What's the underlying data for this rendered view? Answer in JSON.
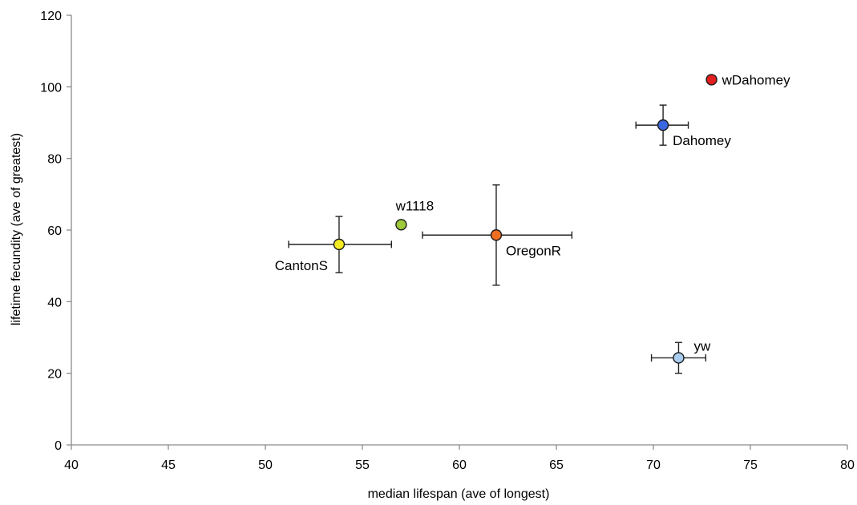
{
  "chart_data": {
    "type": "scatter",
    "title": "",
    "xlabel": "median lifespan (ave of longest)",
    "ylabel": "lifetime fecundity (ave of greatest)",
    "xlim": [
      40,
      80
    ],
    "ylim": [
      0,
      120
    ],
    "xticks": [
      40,
      45,
      50,
      55,
      60,
      65,
      70,
      75,
      80
    ],
    "yticks": [
      0,
      20,
      40,
      60,
      80,
      100,
      120
    ],
    "grid": false,
    "points": [
      {
        "label": "wDahomey",
        "x": 73.0,
        "y": 102.0,
        "x_err": null,
        "y_err": null,
        "color": "#e31e1e",
        "label_anchor": "right"
      },
      {
        "label": "Dahomey",
        "x": 70.5,
        "y": 89.3,
        "x_err": [
          69.1,
          71.8
        ],
        "y_err": [
          83.7,
          94.9
        ],
        "color": "#3b67e0",
        "label_anchor": "below-right"
      },
      {
        "label": "w1118",
        "x": 57.0,
        "y": 61.5,
        "x_err": null,
        "y_err": null,
        "color": "#9ec93a",
        "label_anchor": "above"
      },
      {
        "label": "OregonR",
        "x": 61.9,
        "y": 58.6,
        "x_err": [
          58.1,
          65.8
        ],
        "y_err": [
          44.6,
          72.6
        ],
        "color": "#ef6e22",
        "label_anchor": "below-right"
      },
      {
        "label": "CantonS",
        "x": 53.8,
        "y": 56.0,
        "x_err": [
          51.2,
          56.5
        ],
        "y_err": [
          48.1,
          63.8
        ],
        "color": "#f5eb23",
        "label_anchor": "below-left"
      },
      {
        "label": "yw",
        "x": 71.3,
        "y": 24.3,
        "x_err": [
          69.9,
          72.7
        ],
        "y_err": [
          20.0,
          28.6
        ],
        "color": "#a9cdee",
        "label_anchor": "above-right"
      }
    ]
  }
}
